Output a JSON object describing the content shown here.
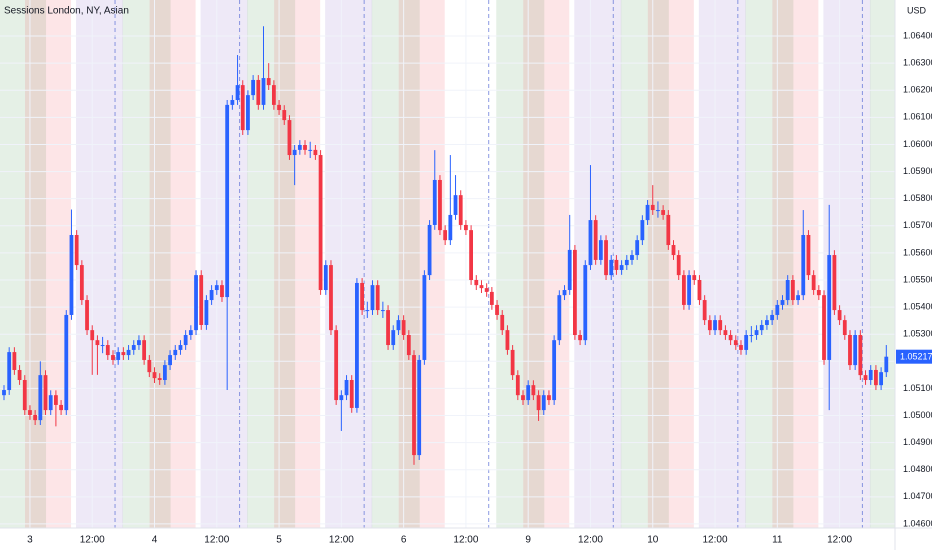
{
  "chart_data": {
    "type": "candlestick",
    "title": "Sessions London, NY, Asian",
    "currency": "USD",
    "up_color": "#2962ff",
    "down_color": "#f23645",
    "grid": true,
    "ylim": [
      1.04585,
      1.06533
    ],
    "yticks": [
      {
        "value": 1.046,
        "label": "1.04600"
      },
      {
        "value": 1.047,
        "label": "1.04700"
      },
      {
        "value": 1.048,
        "label": "1.04800"
      },
      {
        "value": 1.049,
        "label": "1.04900"
      },
      {
        "value": 1.05,
        "label": "1.05000"
      },
      {
        "value": 1.051,
        "label": "1.05100"
      },
      {
        "value": 1.052,
        "label": "1.05200"
      },
      {
        "value": 1.053,
        "label": "1.05300"
      },
      {
        "value": 1.054,
        "label": "1.05400"
      },
      {
        "value": 1.055,
        "label": "1.05500"
      },
      {
        "value": 1.056,
        "label": "1.05600"
      },
      {
        "value": 1.057,
        "label": "1.05700"
      },
      {
        "value": 1.058,
        "label": "1.05800"
      },
      {
        "value": 1.059,
        "label": "1.05900"
      },
      {
        "value": 1.06,
        "label": "1.06000"
      },
      {
        "value": 1.061,
        "label": "1.06100"
      },
      {
        "value": 1.062,
        "label": "1.06200"
      },
      {
        "value": 1.063,
        "label": "1.06300"
      },
      {
        "value": 1.064,
        "label": "1.06400"
      }
    ],
    "categories": [
      null,
      null,
      null,
      null,
      null,
      "3",
      null,
      null,
      null,
      null,
      null,
      null,
      null,
      null,
      null,
      null,
      null,
      "12:00",
      null,
      null,
      null,
      null,
      null,
      null,
      null,
      null,
      null,
      null,
      null,
      "4",
      null,
      null,
      null,
      null,
      null,
      null,
      null,
      null,
      null,
      null,
      null,
      "12:00",
      null,
      null,
      null,
      null,
      null,
      null,
      null,
      null,
      null,
      null,
      null,
      "5",
      null,
      null,
      null,
      null,
      null,
      null,
      null,
      null,
      null,
      null,
      null,
      "12:00",
      null,
      null,
      null,
      null,
      null,
      null,
      null,
      null,
      null,
      null,
      null,
      "6",
      null,
      null,
      null,
      null,
      null,
      null,
      null,
      null,
      null,
      null,
      null,
      "12:00",
      null,
      null,
      null,
      null,
      null,
      null,
      null,
      null,
      null,
      null,
      null,
      "9",
      null,
      null,
      null,
      null,
      null,
      null,
      null,
      null,
      null,
      null,
      null,
      "12:00",
      null,
      null,
      null,
      null,
      null,
      null,
      null,
      null,
      null,
      null,
      null,
      "10",
      null,
      null,
      null,
      null,
      null,
      null,
      null,
      null,
      null,
      null,
      null,
      "12:00",
      null,
      null,
      null,
      null,
      null,
      null,
      null,
      null,
      null,
      null,
      null,
      "11",
      null,
      null,
      null,
      null,
      null,
      null,
      null,
      null,
      null,
      null,
      null,
      "12:00",
      null,
      null,
      null,
      null,
      null,
      null,
      null,
      null,
      null
    ],
    "open": [
      1.05075,
      1.05094,
      1.05234,
      1.05168,
      1.05131,
      1.0502,
      1.05002,
      1.04983,
      1.05149,
      1.0502,
      1.05075,
      1.05039,
      1.0502,
      1.05371,
      1.05666,
      1.05555,
      1.05426,
      1.05315,
      1.05278,
      1.0526,
      1.0526,
      1.05223,
      1.05205,
      1.05234,
      1.05223,
      1.05242,
      1.0526,
      1.05278,
      1.05205,
      1.0516,
      1.05138,
      1.05131,
      1.05186,
      1.05223,
      1.05242,
      1.0526,
      1.05297,
      1.05315,
      1.05518,
      1.05334,
      1.05426,
      1.05463,
      1.05481,
      1.05437,
      1.06146,
      1.06164,
      1.06219,
      1.06053,
      1.06182,
      1.06238,
      1.06146,
      1.06245,
      1.06219,
      1.06146,
      1.06127,
      1.0609,
      1.05961,
      1.0598,
      1.05998,
      1.0598,
      1.0598,
      1.05961,
      1.05463,
      1.05555,
      1.05315,
      1.05057,
      1.05075,
      1.05131,
      1.05028,
      1.05489,
      1.05389,
      1.05389,
      1.05481,
      1.05389,
      1.05389,
      1.0526,
      1.05315,
      1.05352,
      1.05297,
      1.05223,
      1.04854,
      1.05205,
      1.05518,
      1.05703,
      1.05869,
      1.05684,
      1.05647,
      1.0574,
      1.05813,
      1.05703,
      1.05684,
      1.055,
      1.05481,
      1.0547,
      1.05456,
      1.05408,
      1.05371,
      1.05315,
      1.05242,
      1.05149,
      1.05075,
      1.05057,
      1.05112,
      1.05075,
      1.0502,
      1.05075,
      1.05057,
      1.05278,
      1.05444,
      1.05463,
      1.05611,
      1.05297,
      1.05278,
      1.05555,
      1.05721,
      1.05574,
      1.05647,
      1.05518,
      1.05574,
      1.05537,
      1.05555,
      1.05574,
      1.05592,
      1.05647,
      1.05721,
      1.05777,
      1.05758,
      1.05758,
      1.0574,
      1.05629,
      1.05592,
      1.05518,
      1.05408,
      1.05518,
      1.055,
      1.05426,
      1.05352,
      1.05315,
      1.05352,
      1.05315,
      1.05297,
      1.05278,
      1.0526,
      1.05242,
      1.05297,
      1.05297,
      1.05315,
      1.05334,
      1.05352,
      1.05371,
      1.05408,
      1.05426,
      1.055,
      1.05426,
      1.05444,
      1.05666,
      1.05518,
      1.05463,
      1.05444,
      1.05205,
      1.05592,
      1.05389,
      1.05352,
      1.05297,
      1.05186,
      1.05297,
      1.05149,
      1.05131,
      1.05168,
      1.05112,
      1.0516
    ],
    "high": [
      1.05112,
      1.05252,
      1.05252,
      1.05186,
      1.05149,
      1.05038,
      1.0502,
      1.052,
      1.05167,
      1.05093,
      1.05093,
      1.05057,
      1.05389,
      1.0576,
      1.05684,
      1.05573,
      1.05444,
      1.05333,
      1.05296,
      1.0529,
      1.05278,
      1.05241,
      1.05252,
      1.05252,
      1.0526,
      1.05278,
      1.05296,
      1.05296,
      1.05223,
      1.05178,
      1.05156,
      1.05204,
      1.05241,
      1.0526,
      1.05278,
      1.05315,
      1.05333,
      1.05536,
      1.05536,
      1.05444,
      1.05481,
      1.05499,
      1.05499,
      1.06164,
      1.06182,
      1.0633,
      1.06237,
      1.062,
      1.06256,
      1.06256,
      1.06436,
      1.063,
      1.06237,
      1.06164,
      1.06145,
      1.06108,
      1.05998,
      1.06016,
      1.06016,
      1.0601,
      1.05998,
      1.05979,
      1.05573,
      1.05573,
      1.05333,
      1.05093,
      1.05149,
      1.05149,
      1.05507,
      1.05507,
      1.0542,
      1.05499,
      1.05499,
      1.0542,
      1.05407,
      1.05333,
      1.0537,
      1.0537,
      1.05315,
      1.05241,
      1.05223,
      1.05536,
      1.05721,
      1.05979,
      1.05887,
      1.05702,
      1.05961,
      1.05887,
      1.05831,
      1.05721,
      1.05702,
      1.05518,
      1.05499,
      1.05488,
      1.05474,
      1.05426,
      1.05389,
      1.05333,
      1.0526,
      1.05167,
      1.05093,
      1.0513,
      1.0513,
      1.05093,
      1.05093,
      1.05093,
      1.05296,
      1.05462,
      1.05481,
      1.0574,
      1.05629,
      1.05315,
      1.05573,
      1.05924,
      1.05739,
      1.05665,
      1.05665,
      1.05592,
      1.05592,
      1.05573,
      1.05592,
      1.0561,
      1.05665,
      1.05739,
      1.05795,
      1.0585,
      1.0579,
      1.05776,
      1.05758,
      1.05647,
      1.0561,
      1.05536,
      1.05536,
      1.05536,
      1.05518,
      1.05444,
      1.0537,
      1.0537,
      1.0537,
      1.05333,
      1.05315,
      1.05296,
      1.05278,
      1.05315,
      1.0533,
      1.05333,
      1.05352,
      1.0537,
      1.05389,
      1.05426,
      1.05444,
      1.05518,
      1.05518,
      1.05462,
      1.05758,
      1.05684,
      1.05536,
      1.05481,
      1.05462,
      1.05777,
      1.0561,
      1.05407,
      1.0537,
      1.05315,
      1.05315,
      1.05315,
      1.05167,
      1.05186,
      1.05186,
      1.05178,
      1.0526
    ],
    "low": [
      1.05057,
      1.05076,
      1.0515,
      1.05113,
      1.05002,
      1.04984,
      1.04965,
      1.04965,
      1.05002,
      1.05002,
      1.0496,
      1.05002,
      1.05002,
      1.05353,
      1.05537,
      1.05408,
      1.05297,
      1.0515,
      1.0515,
      1.0523,
      1.05205,
      1.05187,
      1.05187,
      1.05205,
      1.05205,
      1.05224,
      1.05242,
      1.05187,
      1.05142,
      1.0512,
      1.05113,
      1.05113,
      1.05168,
      1.05205,
      1.05224,
      1.05242,
      1.05279,
      1.05297,
      1.05316,
      1.05316,
      1.05408,
      1.05445,
      1.05419,
      1.05094,
      1.06128,
      1.06146,
      1.06035,
      1.06035,
      1.06164,
      1.06128,
      1.06128,
      1.06201,
      1.06128,
      1.06109,
      1.06072,
      1.05943,
      1.0585,
      1.05962,
      1.05962,
      1.0595,
      1.05943,
      1.05445,
      1.05445,
      1.05297,
      1.05039,
      1.04943,
      1.05057,
      1.0501,
      1.0501,
      1.05371,
      1.0536,
      1.05371,
      1.05371,
      1.0536,
      1.05242,
      1.05242,
      1.05297,
      1.05279,
      1.05205,
      1.04818,
      1.04836,
      1.05187,
      1.055,
      1.05685,
      1.05666,
      1.05629,
      1.05629,
      1.05722,
      1.05685,
      1.05666,
      1.05482,
      1.05463,
      1.05452,
      1.05438,
      1.0539,
      1.05353,
      1.05297,
      1.05224,
      1.05131,
      1.05057,
      1.05039,
      1.05039,
      1.05057,
      1.0498,
      1.05002,
      1.05039,
      1.05039,
      1.0526,
      1.05426,
      1.05445,
      1.05279,
      1.0526,
      1.0526,
      1.05537,
      1.05556,
      1.05556,
      1.055,
      1.055,
      1.05519,
      1.05519,
      1.05537,
      1.05556,
      1.05574,
      1.05629,
      1.05703,
      1.0574,
      1.0573,
      1.05722,
      1.05611,
      1.05574,
      1.055,
      1.0539,
      1.0539,
      1.05482,
      1.05408,
      1.05334,
      1.05297,
      1.05297,
      1.05297,
      1.05279,
      1.0526,
      1.05242,
      1.05224,
      1.05224,
      1.0527,
      1.05279,
      1.05297,
      1.05316,
      1.05334,
      1.05353,
      1.0539,
      1.05408,
      1.05408,
      1.05408,
      1.05426,
      1.055,
      1.05445,
      1.05426,
      1.05187,
      1.0502,
      1.05371,
      1.05334,
      1.05279,
      1.05168,
      1.05168,
      1.05131,
      1.05113,
      1.05113,
      1.05094,
      1.05094,
      1.05142
    ],
    "close": [
      1.05094,
      1.05234,
      1.05168,
      1.05131,
      1.0502,
      1.05002,
      1.04983,
      1.05149,
      1.0502,
      1.05075,
      1.05039,
      1.0502,
      1.05371,
      1.05666,
      1.05555,
      1.05426,
      1.05315,
      1.05278,
      1.0526,
      1.0526,
      1.05223,
      1.05205,
      1.05234,
      1.05223,
      1.05242,
      1.0526,
      1.05278,
      1.05205,
      1.0516,
      1.05138,
      1.05131,
      1.05186,
      1.05223,
      1.05242,
      1.0526,
      1.05297,
      1.05315,
      1.05518,
      1.05334,
      1.05426,
      1.05463,
      1.05481,
      1.05437,
      1.06146,
      1.06164,
      1.06219,
      1.06053,
      1.06182,
      1.06238,
      1.06146,
      1.06245,
      1.06219,
      1.06146,
      1.06127,
      1.0609,
      1.05961,
      1.0598,
      1.05998,
      1.0598,
      1.0598,
      1.05961,
      1.05463,
      1.05555,
      1.05315,
      1.05057,
      1.05075,
      1.05131,
      1.05028,
      1.05489,
      1.05389,
      1.05389,
      1.05481,
      1.05389,
      1.05389,
      1.0526,
      1.05315,
      1.05352,
      1.05297,
      1.05223,
      1.04854,
      1.05205,
      1.05518,
      1.05703,
      1.05869,
      1.05684,
      1.05647,
      1.0574,
      1.05813,
      1.05703,
      1.05684,
      1.055,
      1.05481,
      1.0547,
      1.05456,
      1.05408,
      1.05371,
      1.05315,
      1.05242,
      1.05149,
      1.05075,
      1.05057,
      1.05112,
      1.05075,
      1.0502,
      1.05075,
      1.05057,
      1.05278,
      1.05444,
      1.05463,
      1.05611,
      1.05297,
      1.05278,
      1.05555,
      1.05721,
      1.05574,
      1.05647,
      1.05518,
      1.05574,
      1.05537,
      1.05555,
      1.05574,
      1.05592,
      1.05647,
      1.05721,
      1.05777,
      1.05758,
      1.05758,
      1.0574,
      1.05629,
      1.05592,
      1.05518,
      1.05408,
      1.05518,
      1.055,
      1.05426,
      1.05352,
      1.05315,
      1.05352,
      1.05315,
      1.05297,
      1.05278,
      1.0526,
      1.05242,
      1.05297,
      1.05297,
      1.05315,
      1.05334,
      1.05352,
      1.05371,
      1.05408,
      1.05426,
      1.055,
      1.05426,
      1.05444,
      1.05666,
      1.05518,
      1.05463,
      1.05444,
      1.05205,
      1.05592,
      1.05389,
      1.05352,
      1.05297,
      1.05186,
      1.05297,
      1.05149,
      1.05131,
      1.05168,
      1.05112,
      1.0516,
      1.05217
    ]
  }
}
